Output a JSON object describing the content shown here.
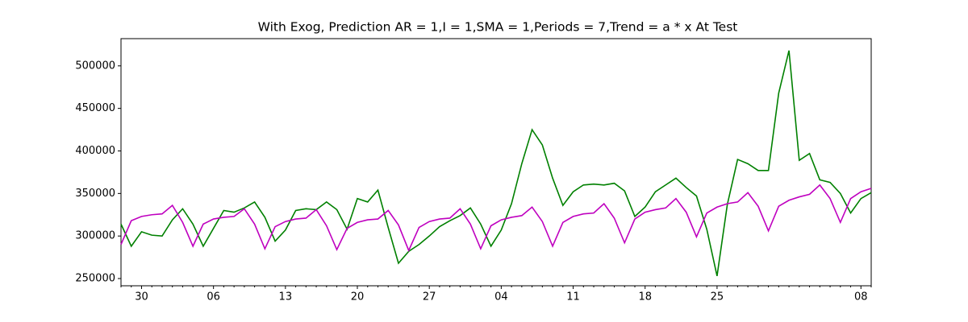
{
  "chart_data": {
    "type": "line",
    "title": "With Exog, Prediction AR = 1,I = 1,SMA = 1,Periods = 7,Trend = a * x At Test",
    "categories": [
      null,
      null,
      "30",
      null,
      null,
      null,
      null,
      null,
      null,
      "06",
      null,
      null,
      null,
      null,
      null,
      null,
      "13",
      null,
      null,
      null,
      null,
      null,
      null,
      "20",
      null,
      null,
      null,
      null,
      null,
      null,
      "27",
      null,
      null,
      null,
      null,
      null,
      null,
      "04",
      null,
      null,
      null,
      null,
      null,
      null,
      "11",
      null,
      null,
      null,
      null,
      null,
      null,
      "18",
      null,
      null,
      null,
      null,
      null,
      null,
      "25",
      null,
      null,
      null,
      null,
      null,
      null,
      null,
      null,
      null,
      null,
      null,
      null,
      null,
      "08",
      null
    ],
    "series": [
      {
        "color": "#008000",
        "values": [
          314000,
          288000,
          305000,
          301000,
          300000,
          319000,
          332000,
          314000,
          288000,
          309000,
          330000,
          328000,
          333000,
          340000,
          322000,
          294000,
          307000,
          330000,
          332000,
          331000,
          340000,
          331000,
          308000,
          344000,
          340000,
          354000,
          310000,
          268000,
          282000,
          290000,
          300000,
          311000,
          318000,
          324000,
          333000,
          314000,
          288000,
          307000,
          338000,
          385000,
          425000,
          407000,
          368000,
          336000,
          352000,
          360000,
          361000,
          360000,
          362000,
          353000,
          323000,
          334000,
          352000,
          360000,
          368000,
          357000,
          347000,
          308000,
          253000,
          337000,
          390000,
          385000,
          377000,
          377000,
          468000,
          518000,
          389000,
          397000,
          366000,
          363000,
          350000,
          327000,
          344000,
          351000
        ]
      },
      {
        "color": "#bf00bf",
        "values": [
          290000,
          318000,
          323000,
          325000,
          326000,
          336000,
          316000,
          288000,
          314000,
          320000,
          322000,
          323000,
          332000,
          314000,
          285000,
          311000,
          317000,
          320000,
          321000,
          331000,
          312000,
          284000,
          309000,
          316000,
          319000,
          320000,
          330000,
          313000,
          283000,
          310000,
          317000,
          320000,
          321000,
          332000,
          314000,
          285000,
          312000,
          319000,
          322000,
          324000,
          334000,
          317000,
          288000,
          316000,
          323000,
          326000,
          327000,
          338000,
          321000,
          292000,
          320000,
          328000,
          331000,
          333000,
          344000,
          328000,
          299000,
          327000,
          334000,
          338000,
          340000,
          351000,
          335000,
          306000,
          335000,
          342000,
          346000,
          349000,
          360000,
          344000,
          316000,
          344000,
          352000,
          356000
        ]
      }
    ],
    "ylim": [
      241500,
      532000
    ],
    "yticks": [
      250000,
      300000,
      350000,
      400000,
      450000,
      500000
    ]
  }
}
